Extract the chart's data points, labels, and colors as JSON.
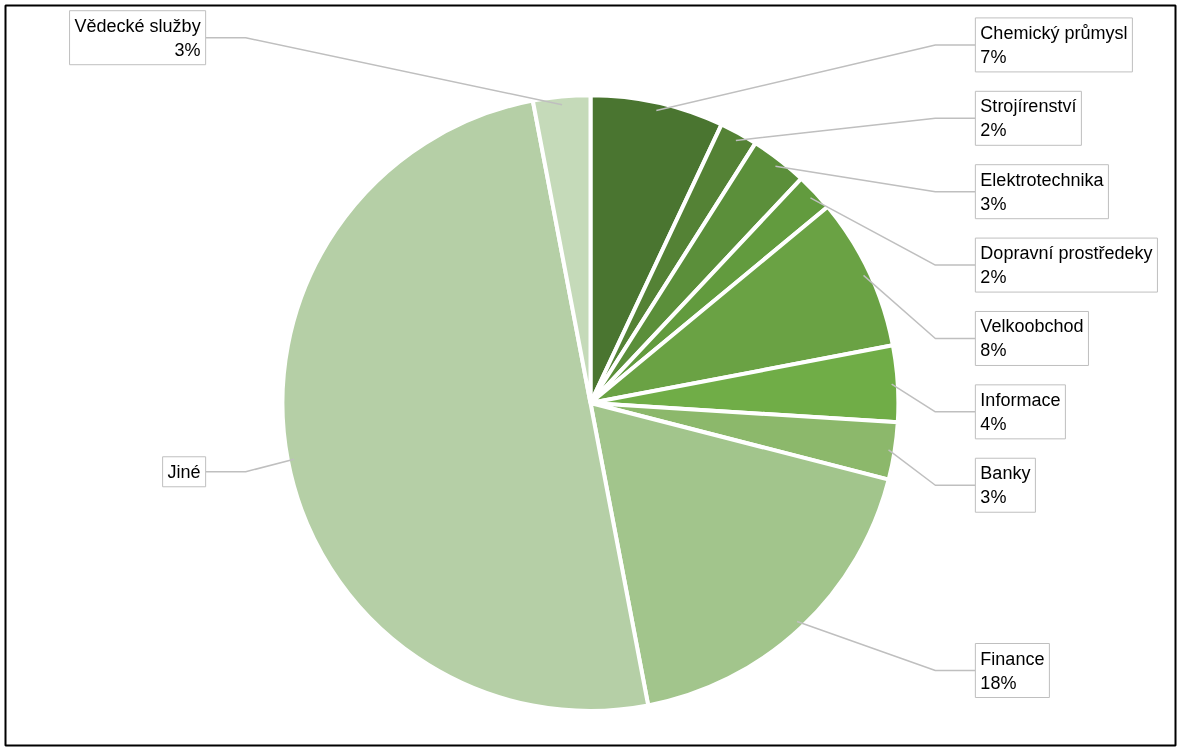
{
  "chart_data": {
    "type": "pie",
    "categories": [
      "Chemický průmysl",
      "Strojírenství",
      "Elektrotechnika",
      "Dopravní prostředeky",
      "Velkoobchod",
      "Informace",
      "Banky",
      "Finance",
      "Jiné",
      "Vědecké služby"
    ],
    "values": [
      7,
      2,
      3,
      2,
      8,
      4,
      3,
      18,
      50,
      3
    ],
    "colors": [
      "#4a7530",
      "#548235",
      "#5b8f3a",
      "#629b3e",
      "#6aa244",
      "#70ad47",
      "#8cb86b",
      "#a2c58c",
      "#b5cfa6",
      "#c5dab9"
    ],
    "value_labels": [
      "7%",
      "2%",
      "3%",
      "2%",
      "8%",
      "4%",
      "3%",
      "18%",
      null,
      "3%"
    ]
  }
}
